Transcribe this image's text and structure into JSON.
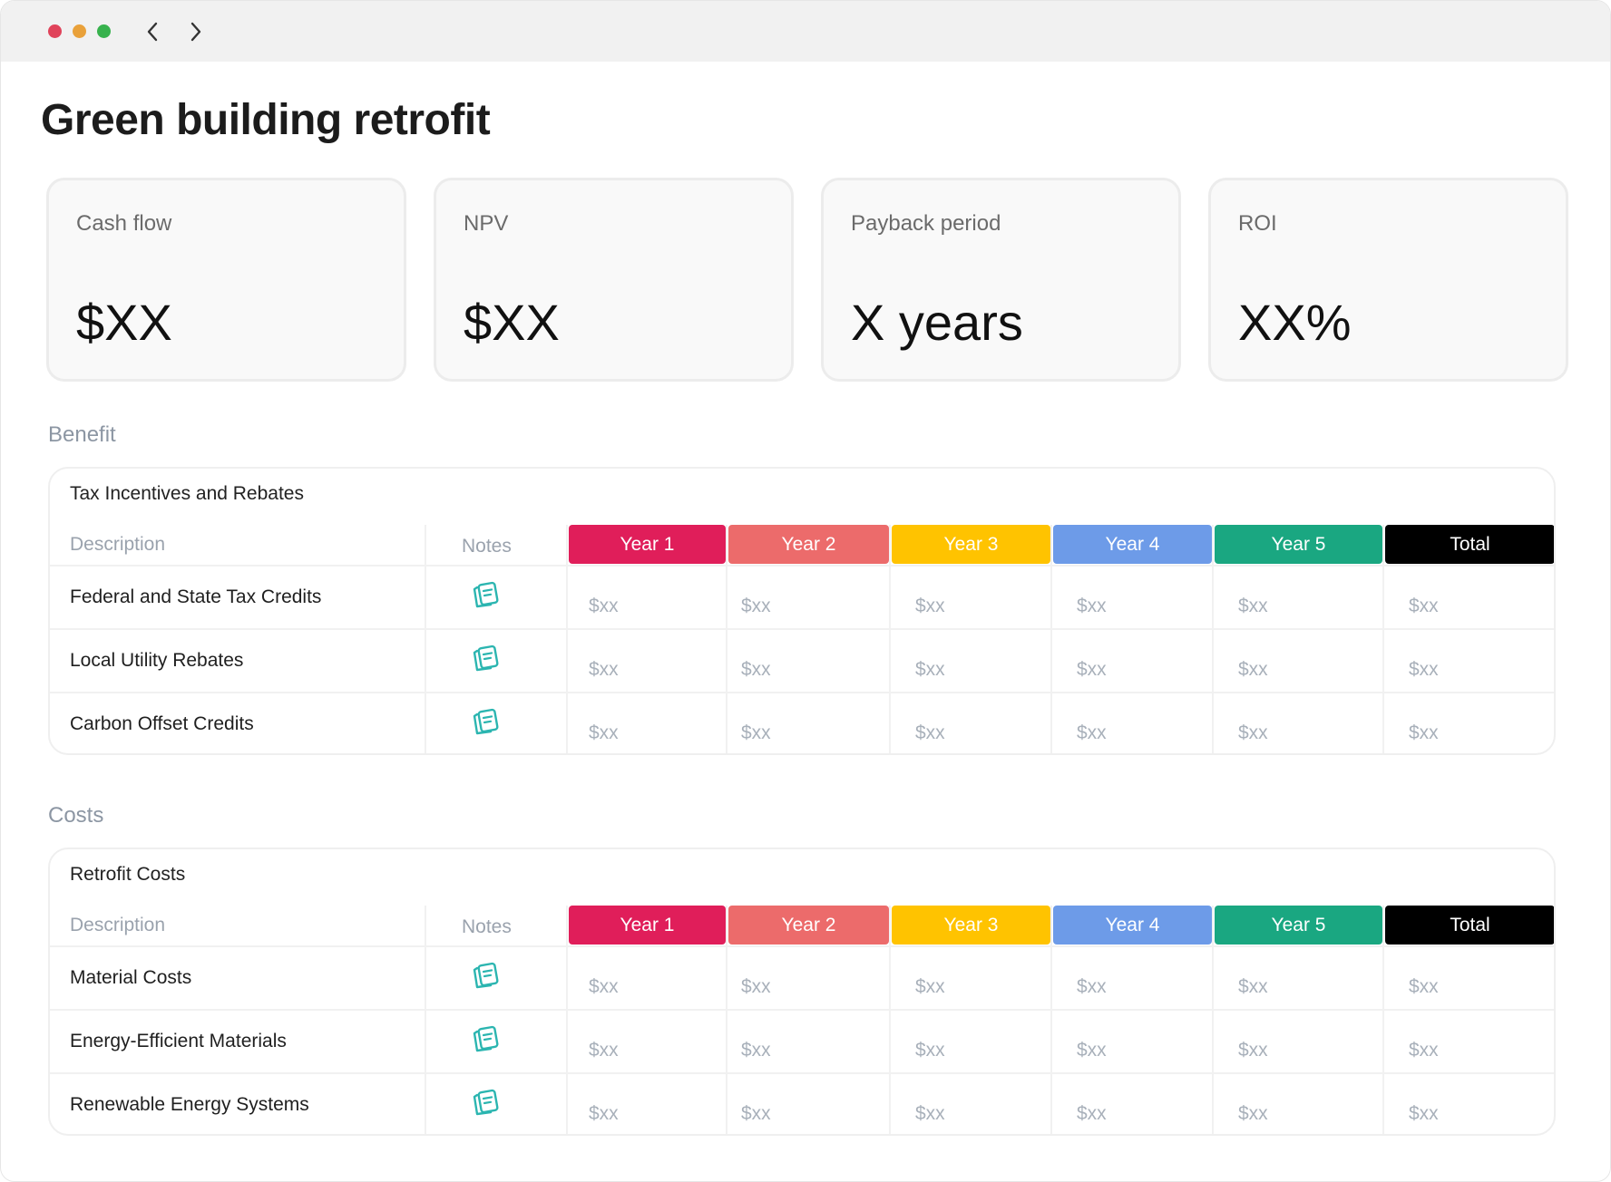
{
  "window": {
    "controls": {
      "close_color": "#e0435a",
      "minimize_color": "#e9a13a",
      "zoom_color": "#37b24d"
    },
    "nav": {
      "back_icon": "chevron-left-icon",
      "forward_icon": "chevron-right-icon"
    }
  },
  "page": {
    "title": "Green building retrofit"
  },
  "kpis": [
    {
      "label": "Cash flow",
      "value": "$XX"
    },
    {
      "label": "NPV",
      "value": "$XX"
    },
    {
      "label": "Payback period",
      "value": "X years"
    },
    {
      "label": "ROI",
      "value": "XX%"
    }
  ],
  "columns": {
    "description": "Description",
    "notes": "Notes",
    "years": [
      {
        "label": "Year 1",
        "color": "#e01e5a"
      },
      {
        "label": "Year 2",
        "color": "#ec6b6b"
      },
      {
        "label": "Year 3",
        "color": "#ffc300"
      },
      {
        "label": "Year 4",
        "color": "#6d9be8"
      },
      {
        "label": "Year 5",
        "color": "#1aa781"
      },
      {
        "label": "Total",
        "color": "#000000"
      }
    ]
  },
  "sections": [
    {
      "title": "Benefit",
      "table_title": "Tax Incentives and Rebates",
      "rows": [
        {
          "label": "Federal and State Tax Credits",
          "values": [
            "$xx",
            "$xx",
            "$xx",
            "$xx",
            "$xx",
            "$xx"
          ]
        },
        {
          "label": "Local Utility Rebates",
          "values": [
            "$xx",
            "$xx",
            "$xx",
            "$xx",
            "$xx",
            "$xx"
          ]
        },
        {
          "label": "Carbon Offset Credits",
          "values": [
            "$xx",
            "$xx",
            "$xx",
            "$xx",
            "$xx",
            "$xx"
          ]
        }
      ]
    },
    {
      "title": "Costs",
      "table_title": "Retrofit Costs",
      "rows": [
        {
          "label": "Material Costs",
          "values": [
            "$xx",
            "$xx",
            "$xx",
            "$xx",
            "$xx",
            "$xx"
          ]
        },
        {
          "label": "Energy-Efficient Materials",
          "values": [
            "$xx",
            "$xx",
            "$xx",
            "$xx",
            "$xx",
            "$xx"
          ]
        },
        {
          "label": "Renewable Energy Systems",
          "values": [
            "$xx",
            "$xx",
            "$xx",
            "$xx",
            "$xx",
            "$xx"
          ]
        }
      ]
    }
  ],
  "icons": {
    "notes_icon": "notes-icon",
    "notes_icon_color": "#2bb5b0"
  }
}
